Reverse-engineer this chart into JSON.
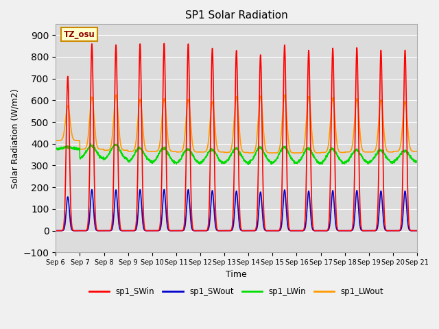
{
  "title": "SP1 Solar Radiation",
  "xlabel": "Time",
  "ylabel": "Solar Radiation (W/m2)",
  "ylim": [
    -100,
    950
  ],
  "yticks": [
    -100,
    0,
    100,
    200,
    300,
    400,
    500,
    600,
    700,
    800,
    900
  ],
  "colors": {
    "sp1_SWin": "#ff0000",
    "sp1_SWout": "#0000cc",
    "sp1_LWin": "#00dd00",
    "sp1_LWout": "#ff9900"
  },
  "tz_label": "TZ_osu",
  "tz_bg": "#ffffcc",
  "tz_border": "#cc8800",
  "fig_bg": "#f0f0f0",
  "plot_bg": "#dcdcdc",
  "n_days": 15,
  "start_day": 6,
  "lw": 1.2,
  "sw_peaks": [
    710,
    860,
    855,
    860,
    862,
    860,
    840,
    830,
    810,
    855,
    830,
    840,
    842,
    830,
    830
  ],
  "lw_out_base": [
    415,
    375,
    370,
    365,
    365,
    362,
    362,
    360,
    358,
    358,
    358,
    360,
    362,
    362,
    365
  ],
  "lw_out_peaks": [
    575,
    615,
    625,
    605,
    608,
    605,
    595,
    618,
    620,
    625,
    618,
    612,
    608,
    602,
    595
  ],
  "lw_in_base": [
    375,
    330,
    325,
    315,
    310,
    308,
    308,
    308,
    308,
    308,
    308,
    308,
    310,
    312,
    315
  ],
  "lw_in_peaks": [
    385,
    390,
    395,
    380,
    380,
    375,
    373,
    378,
    382,
    385,
    378,
    375,
    372,
    370,
    368
  ]
}
